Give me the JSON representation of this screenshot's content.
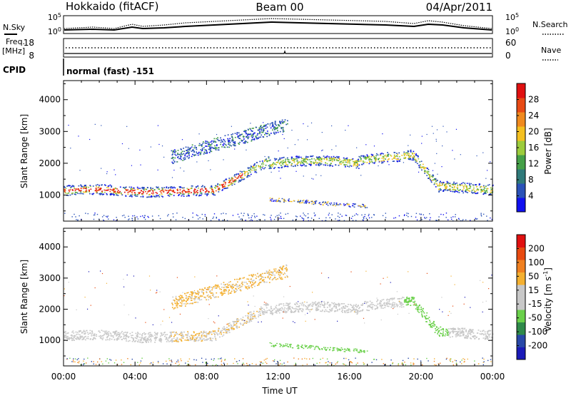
{
  "header": {
    "station": "Hokkaido (fitACF)",
    "beam": "Beam 00",
    "date": "04/Apr/2011"
  },
  "nsky_panel": {
    "left_label": "N.Sky",
    "right_label": "N.Search",
    "ticks_left": [
      "10^5",
      "10^0"
    ],
    "ticks_right": [
      "10^5",
      "10^0"
    ]
  },
  "freq_panel": {
    "left_label_1": "Freq.",
    "left_label_2": "[MHz]",
    "right_label": "Nave",
    "ticks_left": [
      "18",
      "8"
    ],
    "ticks_right": [
      "60",
      "0"
    ]
  },
  "cpid": {
    "label": "CPID",
    "mode": "normal (fast) -151"
  },
  "colors": {
    "power_scale": [
      "#1010f0",
      "#2a52b8",
      "#2f7a7a",
      "#45a048",
      "#9ccc3c",
      "#f4c020",
      "#f08a1e",
      "#e84a14",
      "#e01010"
    ],
    "velocity_scale": [
      "#1a1ab8",
      "#2848a8",
      "#2f8a4a",
      "#6ad04a",
      "#c8c8c8",
      "#c8c8c8",
      "#f4b030",
      "#f08020",
      "#e84a10",
      "#e01010"
    ]
  },
  "chart_data": [
    {
      "type": "heatmap",
      "name": "power",
      "ylabel": "Slant Range [km]",
      "xlabel": "",
      "x_ticks": [
        "00:00",
        "04:00",
        "08:00",
        "12:00",
        "16:00",
        "20:00",
        "00:00"
      ],
      "y_ticks": [
        "1000",
        "2000",
        "3000",
        "4000"
      ],
      "ylim": [
        180,
        4600
      ],
      "colorbar": {
        "label": "Power [dB]",
        "ticks": [
          "4",
          "8",
          "12",
          "16",
          "20",
          "24",
          "28"
        ]
      }
    },
    {
      "type": "heatmap",
      "name": "velocity",
      "ylabel": "Slant Range [km]",
      "xlabel": "Time UT",
      "x_ticks": [
        "00:00",
        "04:00",
        "08:00",
        "12:00",
        "16:00",
        "20:00",
        "00:00"
      ],
      "y_ticks": [
        "1000",
        "2000",
        "3000",
        "4000"
      ],
      "ylim": [
        180,
        4600
      ],
      "colorbar": {
        "label": "Velocity [m s^-1]",
        "ticks": [
          "200",
          "100",
          "50",
          "15",
          "-15",
          "-50",
          "-100",
          "-200"
        ]
      }
    }
  ]
}
